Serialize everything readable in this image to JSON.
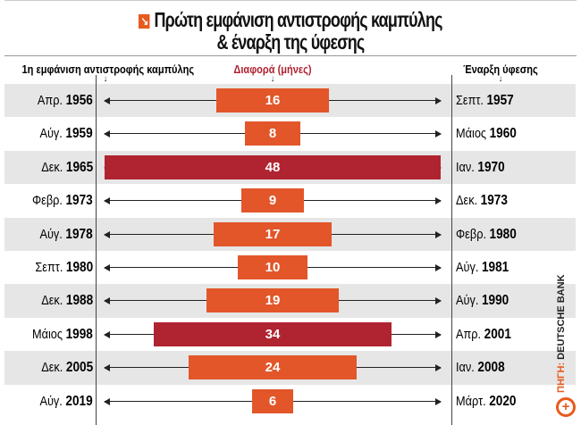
{
  "chart_data": {
    "type": "bar",
    "title": "Πρώτη εμφάνιση αντιστροφής καμπύλης & έναρξη της ύφεσης",
    "title_lines": [
      "Πρώτη εμφάνιση αντιστροφής καμπύλης",
      "& έναρξη της ύφεσης"
    ],
    "headers": {
      "left": "1η εμφάνιση αντιστροφής καμπύλης",
      "center": "Διαφορά (μήνες)",
      "right": "Έναρξη ύφεσης"
    },
    "rows": [
      {
        "start_m": "Απρ.",
        "start_y": "1956",
        "months": 16,
        "end_m": "Σεπτ.",
        "end_y": "1957"
      },
      {
        "start_m": "Αύγ.",
        "start_y": "1959",
        "months": 8,
        "end_m": "Μάιος",
        "end_y": "1960"
      },
      {
        "start_m": "Δεκ.",
        "start_y": "1965",
        "months": 48,
        "end_m": "Ιαν.",
        "end_y": "1970"
      },
      {
        "start_m": "Φεβρ.",
        "start_y": "1973",
        "months": 9,
        "end_m": "Δεκ.",
        "end_y": "1973"
      },
      {
        "start_m": "Αύγ.",
        "start_y": "1978",
        "months": 17,
        "end_m": "Φεβρ.",
        "end_y": "1980"
      },
      {
        "start_m": "Σεπτ.",
        "start_y": "1980",
        "months": 10,
        "end_m": "Αύγ.",
        "end_y": "1981"
      },
      {
        "start_m": "Δεκ.",
        "start_y": "1988",
        "months": 19,
        "end_m": "Αύγ.",
        "end_y": "1990"
      },
      {
        "start_m": "Μάιος",
        "start_y": "1998",
        "months": 34,
        "end_m": "Απρ.",
        "end_y": "2001"
      },
      {
        "start_m": "Δεκ.",
        "start_y": "2005",
        "months": 24,
        "end_m": "Ιαν.",
        "end_y": "2008"
      },
      {
        "start_m": "Αύγ.",
        "start_y": "2019",
        "months": 6,
        "end_m": "Μάρτ.",
        "end_y": "2020"
      }
    ],
    "xlim": [
      0,
      48
    ],
    "source_label": "ΠΗΓΗ:",
    "source": "DEUTSCHE BANK"
  },
  "colors": {
    "orange": "#e2562a",
    "red": "#b02331",
    "accent": "#e85a1e"
  }
}
